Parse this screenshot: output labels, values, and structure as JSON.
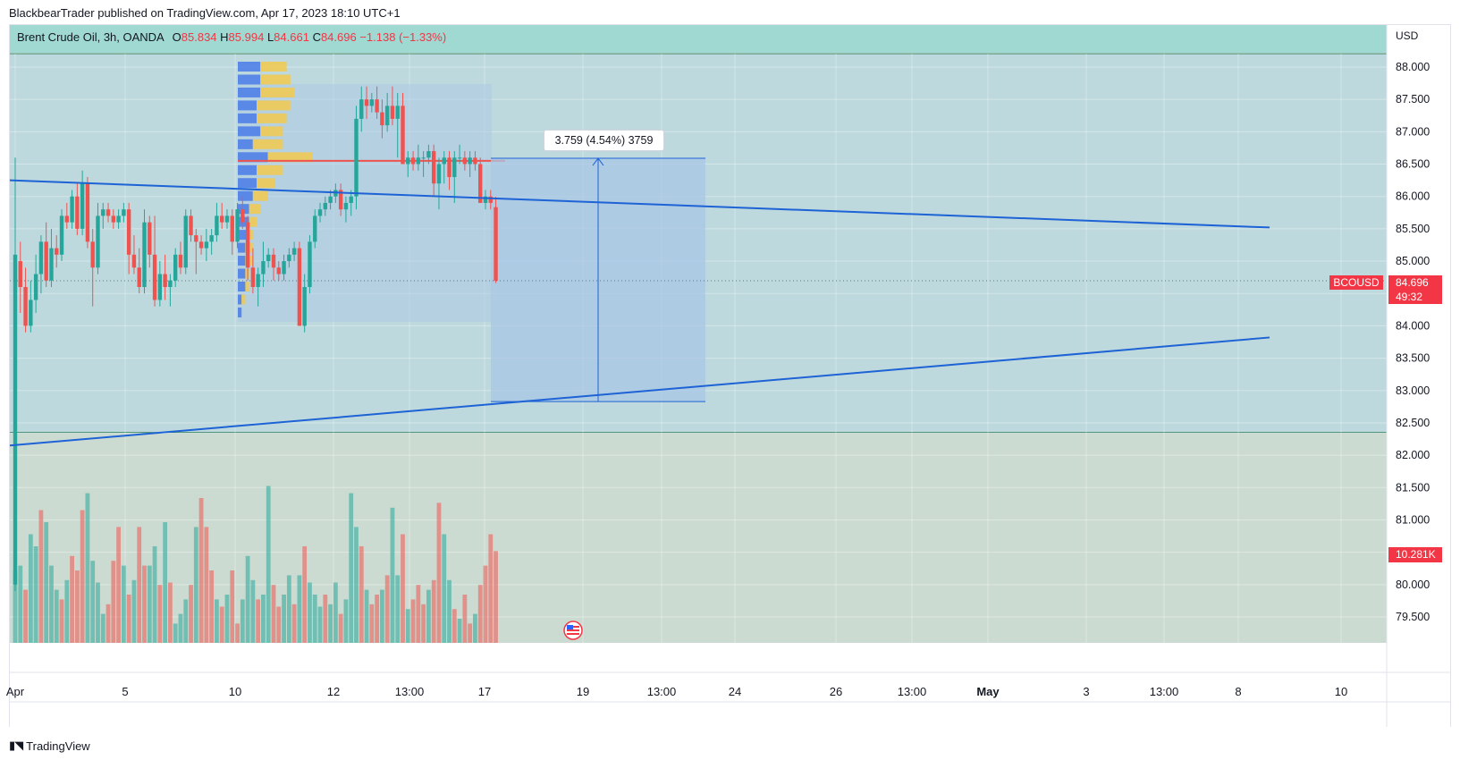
{
  "header": {
    "publisher_line": "BlackbearTrader published on TradingView.com, Apr 17, 2023 18:10 UTC+1"
  },
  "legend": {
    "symbol": "Brent Crude Oil, 3h, OANDA",
    "o_label": "O",
    "o_value": "85.834",
    "h_label": "H",
    "h_value": "85.994",
    "l_label": "L",
    "l_value": "84.661",
    "c_label": "C",
    "c_value": "84.696",
    "change": "−1.138 (−1.33%)"
  },
  "price_axis": {
    "currency": "USD",
    "last_price": "84.696",
    "countdown": "49:32",
    "volume_tag": "10.281K",
    "symbol_tag": "BCOUSD"
  },
  "measure": {
    "label": "3.759 (4.54%) 3759",
    "from_price": 82.83,
    "to_price": 86.59
  },
  "footer": {
    "brand": "TradingView"
  },
  "colors": {
    "up": "#26a69a",
    "down": "#ef5350",
    "trendline": "#1e63d6",
    "upper_zone": "#bdd9dd",
    "lower_zone": "#ccdbd1",
    "header_zone": "#9fd9d1",
    "measure_fill": "#a9c6e6",
    "last_price": "#f23645"
  },
  "chart_data": {
    "type": "candlestick",
    "title": "Brent Crude Oil, 3h, OANDA",
    "ylabel": "USD",
    "ylim": [
      79.2,
      88.1
    ],
    "y_ticks": [
      "88.000",
      "87.500",
      "87.000",
      "86.500",
      "86.000",
      "85.500",
      "85.000",
      "84.500",
      "84.000",
      "83.500",
      "83.000",
      "82.500",
      "82.000",
      "81.500",
      "81.000",
      "80.500",
      "80.000",
      "79.500"
    ],
    "x_ticks": [
      "Apr",
      "5",
      "10",
      "12",
      "13:00",
      "17",
      "19",
      "13:00",
      "24",
      "26",
      "13:00",
      "May",
      "3",
      "13:00",
      "8",
      "10"
    ],
    "candles": [
      [
        80.0,
        86.6,
        79.9,
        85.1
      ],
      [
        85.0,
        85.3,
        84.2,
        84.6
      ],
      [
        84.6,
        84.9,
        83.9,
        84.0
      ],
      [
        84.0,
        84.7,
        83.9,
        84.4
      ],
      [
        84.4,
        85.1,
        84.2,
        84.8
      ],
      [
        84.8,
        85.4,
        84.5,
        85.3
      ],
      [
        85.3,
        85.6,
        84.6,
        84.7
      ],
      [
        84.7,
        85.5,
        84.6,
        85.2
      ],
      [
        85.2,
        85.4,
        84.9,
        85.1
      ],
      [
        85.1,
        85.8,
        85.0,
        85.7
      ],
      [
        85.7,
        85.9,
        85.5,
        85.6
      ],
      [
        85.6,
        86.1,
        85.5,
        86.0
      ],
      [
        86.0,
        86.2,
        85.4,
        85.5
      ],
      [
        85.5,
        86.4,
        85.4,
        86.2
      ],
      [
        86.2,
        86.3,
        85.2,
        85.3
      ],
      [
        85.3,
        85.5,
        84.3,
        84.9
      ],
      [
        84.9,
        85.9,
        84.8,
        85.7
      ],
      [
        85.7,
        85.9,
        85.5,
        85.8
      ],
      [
        85.8,
        85.9,
        85.6,
        85.7
      ],
      [
        85.7,
        85.8,
        85.5,
        85.6
      ],
      [
        85.6,
        85.8,
        85.5,
        85.7
      ],
      [
        85.7,
        85.9,
        85.6,
        85.8
      ],
      [
        85.8,
        85.9,
        84.8,
        85.1
      ],
      [
        85.1,
        85.4,
        84.8,
        84.9
      ],
      [
        84.9,
        85.2,
        84.5,
        84.6
      ],
      [
        84.6,
        85.8,
        84.5,
        85.6
      ],
      [
        85.6,
        85.7,
        84.9,
        85.1
      ],
      [
        85.1,
        85.7,
        84.3,
        84.4
      ],
      [
        84.4,
        85.0,
        84.3,
        84.8
      ],
      [
        84.8,
        85.1,
        84.4,
        84.6
      ],
      [
        84.6,
        84.8,
        84.3,
        84.7
      ],
      [
        84.7,
        85.2,
        84.6,
        85.1
      ],
      [
        85.1,
        85.3,
        84.8,
        84.9
      ],
      [
        84.9,
        85.8,
        84.8,
        85.7
      ],
      [
        85.7,
        85.8,
        85.3,
        85.4
      ],
      [
        85.4,
        85.5,
        84.8,
        85.3
      ],
      [
        85.3,
        85.4,
        85.1,
        85.2
      ],
      [
        85.2,
        85.5,
        85.0,
        85.3
      ],
      [
        85.3,
        85.5,
        85.1,
        85.4
      ],
      [
        85.4,
        85.9,
        85.3,
        85.7
      ],
      [
        85.7,
        85.9,
        85.5,
        85.6
      ],
      [
        85.6,
        85.8,
        85.5,
        85.7
      ],
      [
        85.7,
        85.8,
        85.1,
        85.3
      ],
      [
        85.3,
        85.9,
        85.2,
        85.8
      ],
      [
        85.8,
        86.0,
        85.5,
        85.6
      ],
      [
        85.6,
        85.7,
        84.7,
        84.9
      ],
      [
        84.9,
        85.2,
        84.5,
        84.6
      ],
      [
        84.6,
        84.9,
        84.3,
        84.8
      ],
      [
        84.8,
        85.3,
        84.6,
        85.0
      ],
      [
        85.0,
        85.2,
        84.9,
        85.1
      ],
      [
        85.1,
        85.2,
        84.7,
        84.9
      ],
      [
        84.9,
        85.0,
        84.7,
        84.8
      ],
      [
        84.8,
        85.1,
        84.7,
        85.0
      ],
      [
        85.0,
        85.2,
        84.9,
        85.1
      ],
      [
        85.1,
        85.3,
        85.0,
        85.2
      ],
      [
        85.2,
        85.3,
        84.0,
        84.0
      ],
      [
        84.0,
        84.8,
        83.9,
        84.6
      ],
      [
        84.6,
        85.4,
        84.5,
        85.3
      ],
      [
        85.3,
        85.8,
        85.2,
        85.7
      ],
      [
        85.7,
        85.9,
        85.6,
        85.8
      ],
      [
        85.8,
        86.0,
        85.7,
        85.9
      ],
      [
        85.9,
        86.1,
        85.8,
        86.0
      ],
      [
        86.0,
        86.2,
        85.9,
        86.1
      ],
      [
        86.1,
        86.2,
        85.7,
        85.8
      ],
      [
        85.8,
        86.0,
        85.6,
        85.9
      ],
      [
        85.9,
        86.1,
        85.7,
        86.0
      ],
      [
        86.0,
        87.4,
        85.8,
        87.2
      ],
      [
        87.2,
        87.7,
        87.0,
        87.5
      ],
      [
        87.5,
        87.7,
        87.2,
        87.4
      ],
      [
        87.4,
        87.6,
        87.3,
        87.5
      ],
      [
        87.5,
        87.7,
        87.2,
        87.3
      ],
      [
        87.3,
        87.5,
        86.9,
        87.1
      ],
      [
        87.1,
        87.6,
        87.0,
        87.4
      ],
      [
        87.4,
        87.7,
        87.1,
        87.2
      ],
      [
        87.2,
        87.6,
        86.6,
        87.4
      ],
      [
        87.4,
        87.6,
        86.5,
        86.5
      ],
      [
        86.5,
        86.7,
        86.3,
        86.6
      ],
      [
        86.6,
        86.7,
        86.4,
        86.5
      ],
      [
        86.5,
        86.8,
        86.4,
        86.6
      ],
      [
        86.6,
        86.7,
        86.3,
        86.6
      ],
      [
        86.6,
        86.8,
        86.5,
        86.7
      ],
      [
        86.7,
        86.8,
        86.0,
        86.2
      ],
      [
        86.2,
        86.6,
        85.8,
        86.5
      ],
      [
        86.5,
        86.7,
        86.2,
        86.6
      ],
      [
        86.6,
        86.7,
        86.1,
        86.3
      ],
      [
        86.3,
        86.7,
        85.9,
        86.6
      ],
      [
        86.6,
        86.8,
        86.5,
        86.6
      ],
      [
        86.6,
        86.7,
        86.4,
        86.5
      ],
      [
        86.5,
        86.7,
        86.3,
        86.6
      ],
      [
        86.6,
        86.7,
        86.4,
        86.5
      ],
      [
        86.5,
        86.6,
        85.9,
        85.9
      ],
      [
        85.9,
        86.1,
        85.8,
        86.0
      ],
      [
        86.0,
        86.1,
        85.8,
        85.9
      ],
      [
        85.834,
        85.994,
        84.661,
        84.696
      ]
    ],
    "volume": [
      [
        30,
        "up"
      ],
      [
        32,
        "up"
      ],
      [
        22,
        "down"
      ],
      [
        45,
        "up"
      ],
      [
        40,
        "up"
      ],
      [
        55,
        "down"
      ],
      [
        50,
        "up"
      ],
      [
        32,
        "up"
      ],
      [
        22,
        "up"
      ],
      [
        18,
        "down"
      ],
      [
        26,
        "up"
      ],
      [
        36,
        "down"
      ],
      [
        30,
        "down"
      ],
      [
        55,
        "down"
      ],
      [
        62,
        "up"
      ],
      [
        34,
        "up"
      ],
      [
        25,
        "up"
      ],
      [
        12,
        "up"
      ],
      [
        16,
        "down"
      ],
      [
        34,
        "down"
      ],
      [
        48,
        "down"
      ],
      [
        32,
        "up"
      ],
      [
        20,
        "down"
      ],
      [
        26,
        "up"
      ],
      [
        48,
        "down"
      ],
      [
        32,
        "down"
      ],
      [
        32,
        "up"
      ],
      [
        40,
        "up"
      ],
      [
        24,
        "down"
      ],
      [
        50,
        "up"
      ],
      [
        25,
        "down"
      ],
      [
        8,
        "up"
      ],
      [
        12,
        "up"
      ],
      [
        18,
        "up"
      ],
      [
        24,
        "down"
      ],
      [
        48,
        "up"
      ],
      [
        60,
        "down"
      ],
      [
        48,
        "down"
      ],
      [
        30,
        "down"
      ],
      [
        18,
        "up"
      ],
      [
        15,
        "down"
      ],
      [
        20,
        "up"
      ],
      [
        30,
        "down"
      ],
      [
        8,
        "down"
      ],
      [
        18,
        "up"
      ],
      [
        36,
        "up"
      ],
      [
        26,
        "up"
      ],
      [
        18,
        "down"
      ],
      [
        20,
        "up"
      ],
      [
        65,
        "up"
      ],
      [
        24,
        "down"
      ],
      [
        15,
        "down"
      ],
      [
        20,
        "up"
      ],
      [
        28,
        "up"
      ],
      [
        16,
        "down"
      ],
      [
        28,
        "up"
      ],
      [
        40,
        "down"
      ],
      [
        25,
        "up"
      ],
      [
        20,
        "up"
      ],
      [
        15,
        "up"
      ],
      [
        20,
        "down"
      ],
      [
        16,
        "up"
      ],
      [
        25,
        "up"
      ],
      [
        12,
        "down"
      ],
      [
        18,
        "up"
      ],
      [
        62,
        "up"
      ],
      [
        48,
        "up"
      ],
      [
        40,
        "down"
      ],
      [
        22,
        "up"
      ],
      [
        16,
        "down"
      ],
      [
        20,
        "down"
      ],
      [
        22,
        "up"
      ],
      [
        28,
        "down"
      ],
      [
        56,
        "up"
      ],
      [
        28,
        "up"
      ],
      [
        45,
        "down"
      ],
      [
        14,
        "up"
      ],
      [
        18,
        "down"
      ],
      [
        24,
        "down"
      ],
      [
        16,
        "down"
      ],
      [
        22,
        "up"
      ],
      [
        26,
        "down"
      ],
      [
        58,
        "down"
      ],
      [
        45,
        "up"
      ],
      [
        26,
        "up"
      ],
      [
        14,
        "down"
      ],
      [
        10,
        "up"
      ],
      [
        20,
        "down"
      ],
      [
        8,
        "down"
      ],
      [
        12,
        "up"
      ],
      [
        24,
        "down"
      ],
      [
        32,
        "down"
      ],
      [
        45,
        "down"
      ],
      [
        38,
        "down"
      ]
    ],
    "volume_profile": [
      [
        88.0,
        6,
        7
      ],
      [
        87.8,
        6,
        8
      ],
      [
        87.6,
        6,
        9
      ],
      [
        87.4,
        5,
        9
      ],
      [
        87.2,
        5,
        8
      ],
      [
        87.0,
        6,
        6
      ],
      [
        86.8,
        4,
        8
      ],
      [
        86.6,
        8,
        12
      ],
      [
        86.4,
        5,
        7
      ],
      [
        86.2,
        5,
        5
      ],
      [
        86.0,
        4,
        4
      ],
      [
        85.8,
        3,
        3
      ],
      [
        85.6,
        3,
        2
      ],
      [
        85.4,
        3,
        1
      ],
      [
        85.2,
        2,
        2
      ],
      [
        85.0,
        2,
        2
      ],
      [
        84.8,
        2,
        1
      ],
      [
        84.6,
        2,
        1
      ],
      [
        84.4,
        1,
        1
      ],
      [
        84.2,
        1,
        0
      ]
    ],
    "volume_profile_poc": 86.55,
    "trendlines": [
      {
        "from": [
          "Apr",
          86.25
        ],
        "to": [
          "May 7",
          85.52
        ]
      },
      {
        "from": [
          "Apr",
          82.15
        ],
        "to": [
          "May 7",
          83.82
        ]
      }
    ],
    "horizontal_line": 82.35
  }
}
